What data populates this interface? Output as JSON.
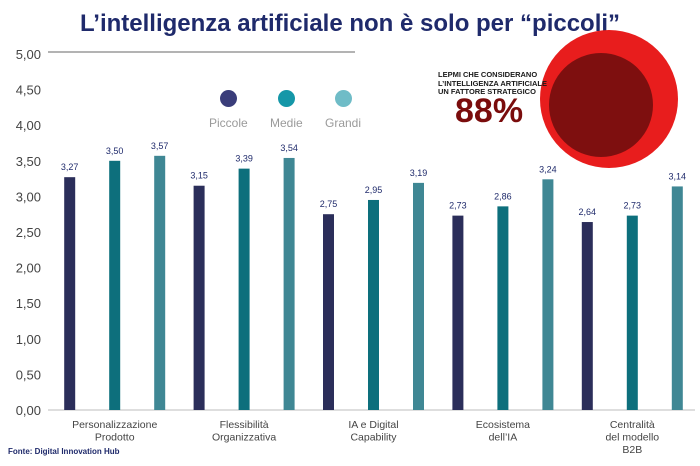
{
  "title": "L’intelligenza artificiale non è solo per “piccoli”",
  "source": "Fonte: Digital Innovation Hub",
  "callout": {
    "text_lines": [
      "LEPMI CHE CONSIDERANO",
      "L’INTELLIGENZA ARTIFICIALE",
      "UN FATTORE STRATEGICO"
    ],
    "value": "88%",
    "colors": {
      "outer": "#e81d1d",
      "inner": "#7e0f0f",
      "value": "#7a0c0c"
    }
  },
  "chart_data": {
    "type": "bar",
    "title": "",
    "xlabel": "",
    "ylabel": "",
    "ylim": [
      0,
      5
    ],
    "yticks": [
      "0,00",
      "0,50",
      "1,00",
      "1,50",
      "2,00",
      "2,50",
      "3,00",
      "3,50",
      "4,00",
      "4,50",
      "5,00"
    ],
    "grid": false,
    "legend_placement": "top-left",
    "categories": [
      [
        "Personalizzazione",
        "Prodotto"
      ],
      [
        "Flessibilità",
        "Organizzativa"
      ],
      [
        "IA e Digital",
        "Capability"
      ],
      [
        "Ecosistema",
        "dell’IA"
      ],
      [
        "Centralità",
        "del modello",
        "B2B"
      ]
    ],
    "series": [
      {
        "name": "Piccole",
        "color": "#2b2e5a",
        "values": [
          3.27,
          3.15,
          2.75,
          2.73,
          2.64
        ],
        "labels": [
          "3,27",
          "3,15",
          "2,75",
          "2,73",
          "2,64"
        ]
      },
      {
        "name": "Medie",
        "color": "#0d6f7c",
        "values": [
          3.5,
          3.39,
          2.95,
          2.86,
          2.73
        ],
        "labels": [
          "3,50",
          "3,39",
          "2,95",
          "2,86",
          "2,73"
        ]
      },
      {
        "name": "Grandi",
        "color": "#3f8794",
        "values": [
          3.57,
          3.54,
          3.19,
          3.24,
          3.14
        ],
        "labels": [
          "3,57",
          "3,54",
          "3,19",
          "3,24",
          "3,14"
        ]
      }
    ]
  },
  "legend_colors": [
    "#3a3d7a",
    "#1597a8",
    "#6fbcc7"
  ]
}
